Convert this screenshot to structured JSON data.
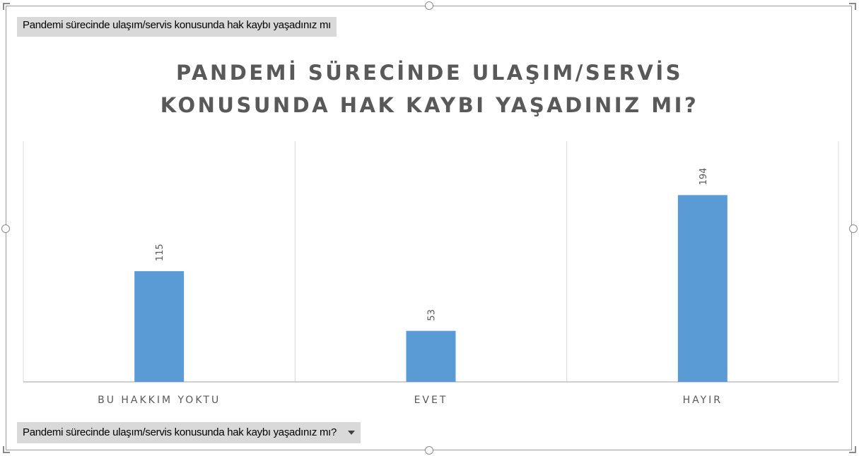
{
  "filter_field": {
    "label": "Pandemi sürecinde ulaşım/servis konusunda hak kaybı yaşadınız mı"
  },
  "axis_field": {
    "label": "Pandemi sürecinde ulaşım/servis konusunda hak kaybı yaşadınız mı?",
    "icon": "dropdown-arrow-icon"
  },
  "colors": {
    "bar": "#5b9bd5",
    "gridline": "#d9d9d9",
    "axis": "#bfbfbf",
    "text": "#595959"
  },
  "chart_data": {
    "type": "bar",
    "title": "PANDEMİ SÜRECİNDE ULAŞIM/SERVİS KONUSUNDA HAK KAYBI YAŞADINIZ MI?",
    "title_lines": [
      "PANDEMİ SÜRECİNDE ULAŞIM/SERVİS",
      "KONUSUNDA HAK KAYBI YAŞADINIZ MI?"
    ],
    "categories": [
      "BU HAKKIM YOKTU",
      "EVET",
      "HAYIR"
    ],
    "values": [
      115,
      53,
      194
    ],
    "ylim": [
      0,
      250
    ],
    "xlabel": "",
    "ylabel": "",
    "grid": "vertical",
    "legend": "none",
    "data_labels": "rotated-above"
  }
}
